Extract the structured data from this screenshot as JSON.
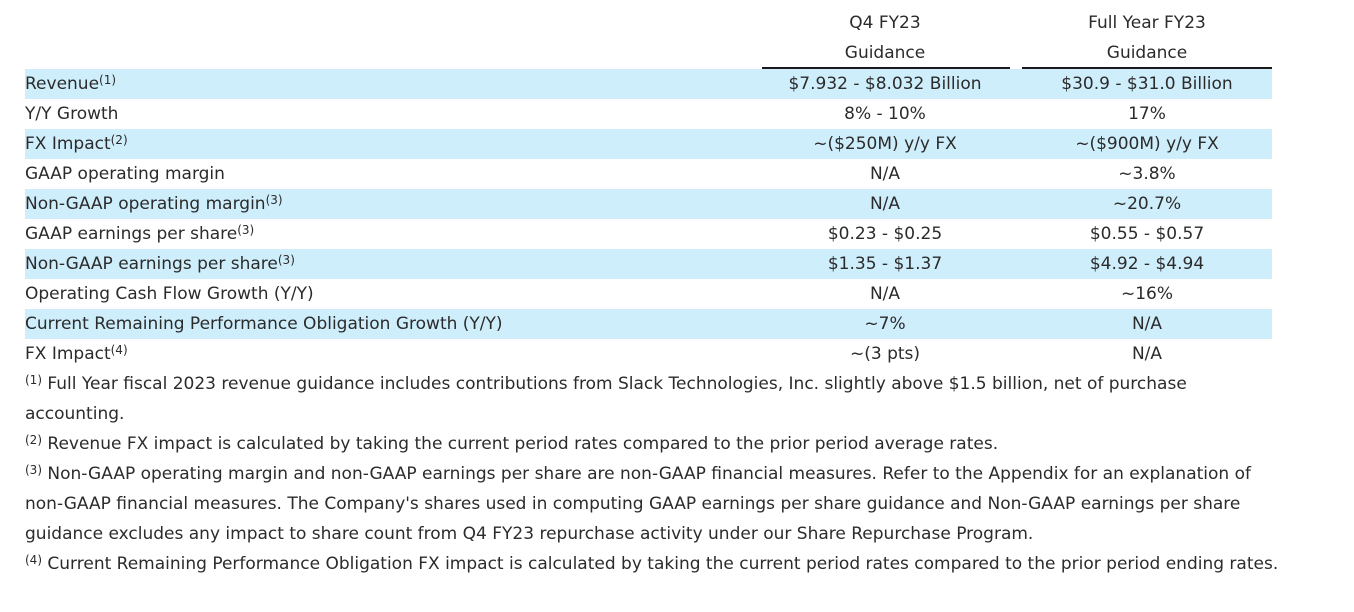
{
  "header": {
    "q4_line1": "Q4 FY23",
    "q4_line2": "Guidance",
    "fy_line1": "Full Year FY23",
    "fy_line2": "Guidance"
  },
  "rows": [
    {
      "label": "Revenue",
      "sup": "(1)",
      "q4": "$7.932 - $8.032 Billion",
      "fy": "$30.9 - $31.0 Billion"
    },
    {
      "label": "Y/Y Growth",
      "sup": "",
      "q4": "8% - 10%",
      "fy": "17%"
    },
    {
      "label": "FX Impact",
      "sup": "(2)",
      "q4": "~($250M) y/y FX",
      "fy": "~($900M) y/y FX"
    },
    {
      "label": "GAAP operating margin",
      "sup": "",
      "q4": "N/A",
      "fy": "~3.8%"
    },
    {
      "label": "Non-GAAP operating margin",
      "sup": "(3)",
      "q4": "N/A",
      "fy": "~20.7%"
    },
    {
      "label": "GAAP earnings per share",
      "sup": "(3)",
      "q4": "$0.23 - $0.25",
      "fy": "$0.55 - $0.57"
    },
    {
      "label": "Non-GAAP earnings per share",
      "sup": "(3)",
      "q4": "$1.35 - $1.37",
      "fy": "$4.92 - $4.94"
    },
    {
      "label": "Operating Cash Flow Growth (Y/Y)",
      "sup": "",
      "q4": "N/A",
      "fy": "~16%"
    },
    {
      "label": "Current Remaining Performance Obligation Growth (Y/Y)",
      "sup": "",
      "q4": "~7%",
      "fy": "N/A"
    },
    {
      "label": "FX Impact",
      "sup": "(4)",
      "q4": "~(3 pts)",
      "fy": "N/A"
    }
  ],
  "footnotes": [
    {
      "mark": "(1)",
      "text": " Full Year fiscal 2023 revenue guidance includes contributions from Slack Technologies, Inc. slightly above $1.5 billion, net of purchase accounting."
    },
    {
      "mark": "(2)",
      "text": " Revenue FX impact is calculated by taking the current period rates compared to the prior period average rates."
    },
    {
      "mark": "(3)",
      "text": " Non-GAAP operating margin and non-GAAP earnings per share are non-GAAP financial measures. Refer to the Appendix for an explanation of non-GAAP financial measures. The Company's shares used in computing GAAP earnings per share guidance and Non-GAAP earnings per share guidance excludes any impact to share count from Q4 FY23 repurchase activity under our Share Repurchase Program."
    },
    {
      "mark": "(4)",
      "text": " Current Remaining Performance Obligation FX impact is calculated by taking the current period rates compared to the prior period ending rates."
    }
  ],
  "colors": {
    "row_shade": "#cfeefc",
    "text": "#2b2b2b",
    "rule": "#1a1a1a"
  }
}
